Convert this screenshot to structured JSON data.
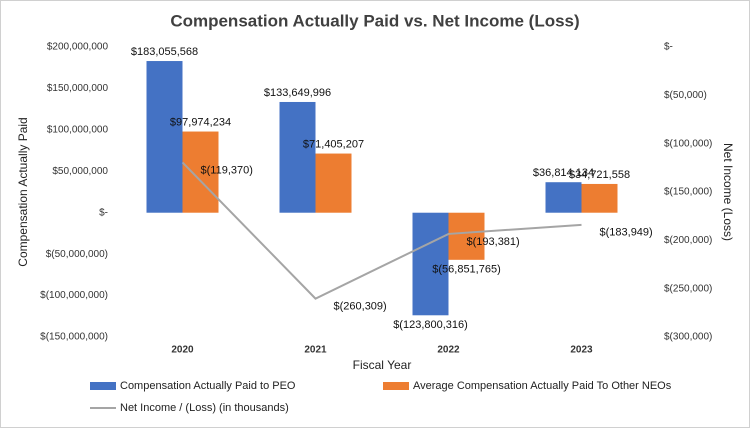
{
  "chart_data": {
    "type": "bar",
    "title": "Compensation Actually Paid vs. Net Income (Loss)",
    "x_label": "Fiscal Year",
    "y_label": "Compensation Actually Paid",
    "y2_label": "Net Income (Loss)",
    "categories": [
      "2020",
      "2021",
      "2022",
      "2023"
    ],
    "series": [
      {
        "name": "Compensation Actually Paid to PEO",
        "type": "bar",
        "color": "#4472c4",
        "values": [
          183055568,
          133649996,
          -123800316,
          36814134
        ],
        "value_labels": [
          "$183,055,568",
          "$133,649,996",
          "$(123,800,316)",
          "$36,814,134"
        ]
      },
      {
        "name": "Average Compensation Actually Paid To Other NEOs",
        "type": "bar",
        "color": "#ed7d31",
        "values": [
          97974234,
          71405207,
          -56851765,
          34721558
        ],
        "value_labels": [
          "$97,974,234",
          "$71,405,207",
          "$(56,851,765)",
          "$34,721,558"
        ]
      },
      {
        "name": "Net Income / (Loss) (in thousands)",
        "type": "line",
        "axis": "y2",
        "color": "#a5a5a5",
        "values": [
          -119370,
          -260309,
          -193381,
          -183949
        ],
        "value_labels": [
          "$(119,370)",
          "$(260,309)",
          "$(193,381)",
          "$(183,949)"
        ]
      }
    ],
    "ylim": [
      -150000000,
      200000000
    ],
    "yticks": [
      {
        "value": -150000000,
        "label": "$(150,000,000)"
      },
      {
        "value": -100000000,
        "label": "$(100,000,000)"
      },
      {
        "value": -50000000,
        "label": "$(50,000,000)"
      },
      {
        "value": 0,
        "label": "$-"
      },
      {
        "value": 50000000,
        "label": "$50,000,000"
      },
      {
        "value": 100000000,
        "label": "$100,000,000"
      },
      {
        "value": 150000000,
        "label": "$150,000,000"
      },
      {
        "value": 200000000,
        "label": "$200,000,000"
      }
    ],
    "y2lim": [
      -300000,
      0
    ],
    "y2ticks": [
      {
        "value": -300000,
        "label": "$(300,000)"
      },
      {
        "value": -250000,
        "label": "$(250,000)"
      },
      {
        "value": -200000,
        "label": "$(200,000)"
      },
      {
        "value": -150000,
        "label": "$(150,000)"
      },
      {
        "value": -100000,
        "label": "$(100,000)"
      },
      {
        "value": -50000,
        "label": "$(50,000)"
      },
      {
        "value": 0,
        "label": "$-"
      }
    ],
    "grid": false
  }
}
